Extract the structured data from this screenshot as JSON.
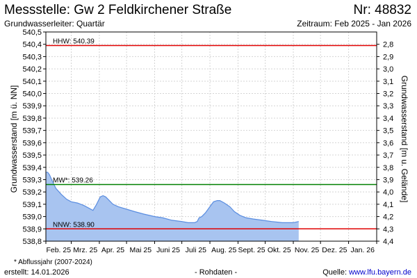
{
  "header": {
    "title": "Messstelle: Gw 2 Feldkirchener Straße",
    "nr": "Nr: 48832",
    "aquifer": "Grundwasserleiter: Quartär",
    "period": "Zeitraum: Feb 2025 - Jan 2026"
  },
  "footer": {
    "footnote": "* Abflussjahr (2007-2024)",
    "created": "erstellt:  14.01.2026",
    "rohdaten": "- Rohdaten -",
    "source_prefix": "Quelle: ",
    "source_link": "www.lfu.bayern.de"
  },
  "chart_data": {
    "type": "area",
    "ylabel": "Grundwasserstand [m ü. NN]",
    "y2label": "Grundwasserstand [m u. Gelände]",
    "ylim": [
      538.8,
      540.5
    ],
    "y2lim": [
      2.7,
      4.4
    ],
    "grid": true,
    "yticks": [
      "538,8",
      "538,9",
      "539,0",
      "539,1",
      "539,2",
      "539,3",
      "539,4",
      "539,5",
      "539,6",
      "539,7",
      "539,8",
      "539,9",
      "540,0",
      "540,1",
      "540,2",
      "540,3",
      "540,4",
      "540,5"
    ],
    "y2ticks": [
      "2,8",
      "2,9",
      "3,0",
      "3,1",
      "3,2",
      "3,3",
      "3,4",
      "3,5",
      "3,6",
      "3,7",
      "3,8",
      "3,9",
      "4,0",
      "4,1",
      "4,2",
      "4,3",
      "4,4"
    ],
    "xlim": [
      "2025-02-01",
      "2026-02-01"
    ],
    "xticks": [
      "Feb. 25",
      "Mrz. 25",
      "Apr. 25",
      "Mai 25",
      "Juni 25",
      "Juli 25",
      "Aug. 25",
      "Sept. 25",
      "Okt. 25",
      "Nov. 25",
      "Dez. 25",
      "Jan. 26"
    ],
    "reference_lines": [
      {
        "label": "HHW: 540.39",
        "value": 540.39,
        "color": "#e00000"
      },
      {
        "label": "MW*: 539.26",
        "value": 539.26,
        "color": "#008000"
      },
      {
        "label": "NNW: 538.90",
        "value": 538.9,
        "color": "#e00000"
      }
    ],
    "fill_color": "#a8c4f0",
    "line_color": "#5a8de0",
    "series": [
      {
        "x": [
          "2025-02-01",
          "2025-02-03",
          "2025-02-05",
          "2025-02-08",
          "2025-02-12",
          "2025-02-18",
          "2025-02-24",
          "2025-03-01",
          "2025-03-08",
          "2025-03-15",
          "2025-03-20",
          "2025-03-25",
          "2025-03-29",
          "2025-04-02",
          "2025-04-05",
          "2025-04-08",
          "2025-04-12",
          "2025-04-16",
          "2025-04-22",
          "2025-05-01",
          "2025-05-10",
          "2025-05-20",
          "2025-06-01",
          "2025-06-10",
          "2025-06-20",
          "2025-07-01",
          "2025-07-08",
          "2025-07-12",
          "2025-07-15",
          "2025-07-18",
          "2025-07-20",
          "2025-07-23",
          "2025-07-27",
          "2025-08-01",
          "2025-08-05",
          "2025-08-09",
          "2025-08-12",
          "2025-08-17",
          "2025-08-23",
          "2025-08-28",
          "2025-09-03",
          "2025-09-10",
          "2025-09-18",
          "2025-09-28",
          "2025-10-08",
          "2025-10-20",
          "2025-11-01",
          "2025-11-07"
        ],
        "values": [
          539.36,
          539.36,
          539.34,
          539.29,
          539.23,
          539.18,
          539.14,
          539.12,
          539.11,
          539.09,
          539.07,
          539.05,
          539.1,
          539.16,
          539.17,
          539.16,
          539.13,
          539.1,
          539.08,
          539.06,
          539.04,
          539.02,
          539.0,
          538.99,
          538.97,
          538.96,
          538.95,
          538.95,
          538.95,
          538.96,
          538.99,
          539.0,
          539.03,
          539.08,
          539.12,
          539.13,
          539.13,
          539.11,
          539.08,
          539.04,
          539.01,
          538.99,
          538.98,
          538.97,
          538.96,
          538.95,
          538.95,
          538.96
        ]
      }
    ]
  }
}
